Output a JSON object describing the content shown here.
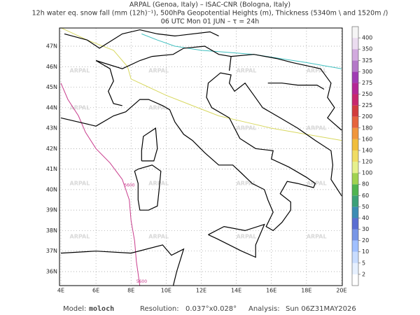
{
  "header": {
    "line1": "ARPAL (Genoa, Italy)  –  ISAC-CNR (Bologna, Italy)",
    "line2": "12h water eq. snow fall (mm (12h)⁻¹), 500hPa Geopotential Heights (m), Thickness (5340m \\ and 1520m /)",
    "line3": "06 UTC Mon 01 JUN  –  τ = 24h"
  },
  "map": {
    "lon_ticks": [
      {
        "value": 4,
        "label": "4E"
      },
      {
        "value": 6,
        "label": "6E"
      },
      {
        "value": 8,
        "label": "8E"
      },
      {
        "value": 10,
        "label": "10E"
      },
      {
        "value": 12,
        "label": "12E"
      },
      {
        "value": 14,
        "label": "14E"
      },
      {
        "value": 16,
        "label": "16E"
      },
      {
        "value": 18,
        "label": "18E"
      },
      {
        "value": 20,
        "label": "20E"
      }
    ],
    "lat_ticks": [
      {
        "value": 36,
        "label": "36N"
      },
      {
        "value": 37,
        "label": "37N"
      },
      {
        "value": 38,
        "label": "38N"
      },
      {
        "value": 39,
        "label": "39N"
      },
      {
        "value": 40,
        "label": "40N"
      },
      {
        "value": 41,
        "label": "41N"
      },
      {
        "value": 42,
        "label": "42N"
      },
      {
        "value": 43,
        "label": "43N"
      },
      {
        "value": 44,
        "label": "44N"
      },
      {
        "value": 45,
        "label": "45N"
      },
      {
        "value": 46,
        "label": "46N"
      },
      {
        "value": 47,
        "label": "47N"
      }
    ],
    "contour_label": "5600",
    "watermark": "ARPAL"
  },
  "colorbar": {
    "ticks": [
      2,
      5,
      10,
      20,
      30,
      40,
      50,
      60,
      80,
      100,
      120,
      140,
      160,
      180,
      200,
      225,
      250,
      275,
      300,
      325,
      350,
      400
    ],
    "colors": [
      "#ffffff",
      "#e6f0ff",
      "#c8dcff",
      "#a0c0ff",
      "#7896e6",
      "#5a6ed2",
      "#3c8cb4",
      "#3ca078",
      "#50b450",
      "#a0d250",
      "#e6f08c",
      "#f0dc64",
      "#f0be3c",
      "#f0963c",
      "#e6643c",
      "#d23c3c",
      "#c8286e",
      "#b42896",
      "#a03cb4",
      "#b478c8",
      "#d2aade",
      "#ebdcf0",
      "#f5f5f5"
    ]
  },
  "footer": {
    "model_label": "Model:",
    "model": "moloch",
    "resolution_label": "Resolution:",
    "resolution": "0.037°x0.028°",
    "analysis_label": "Analysis:",
    "analysis": "Sun 06Z31MAY2026"
  }
}
